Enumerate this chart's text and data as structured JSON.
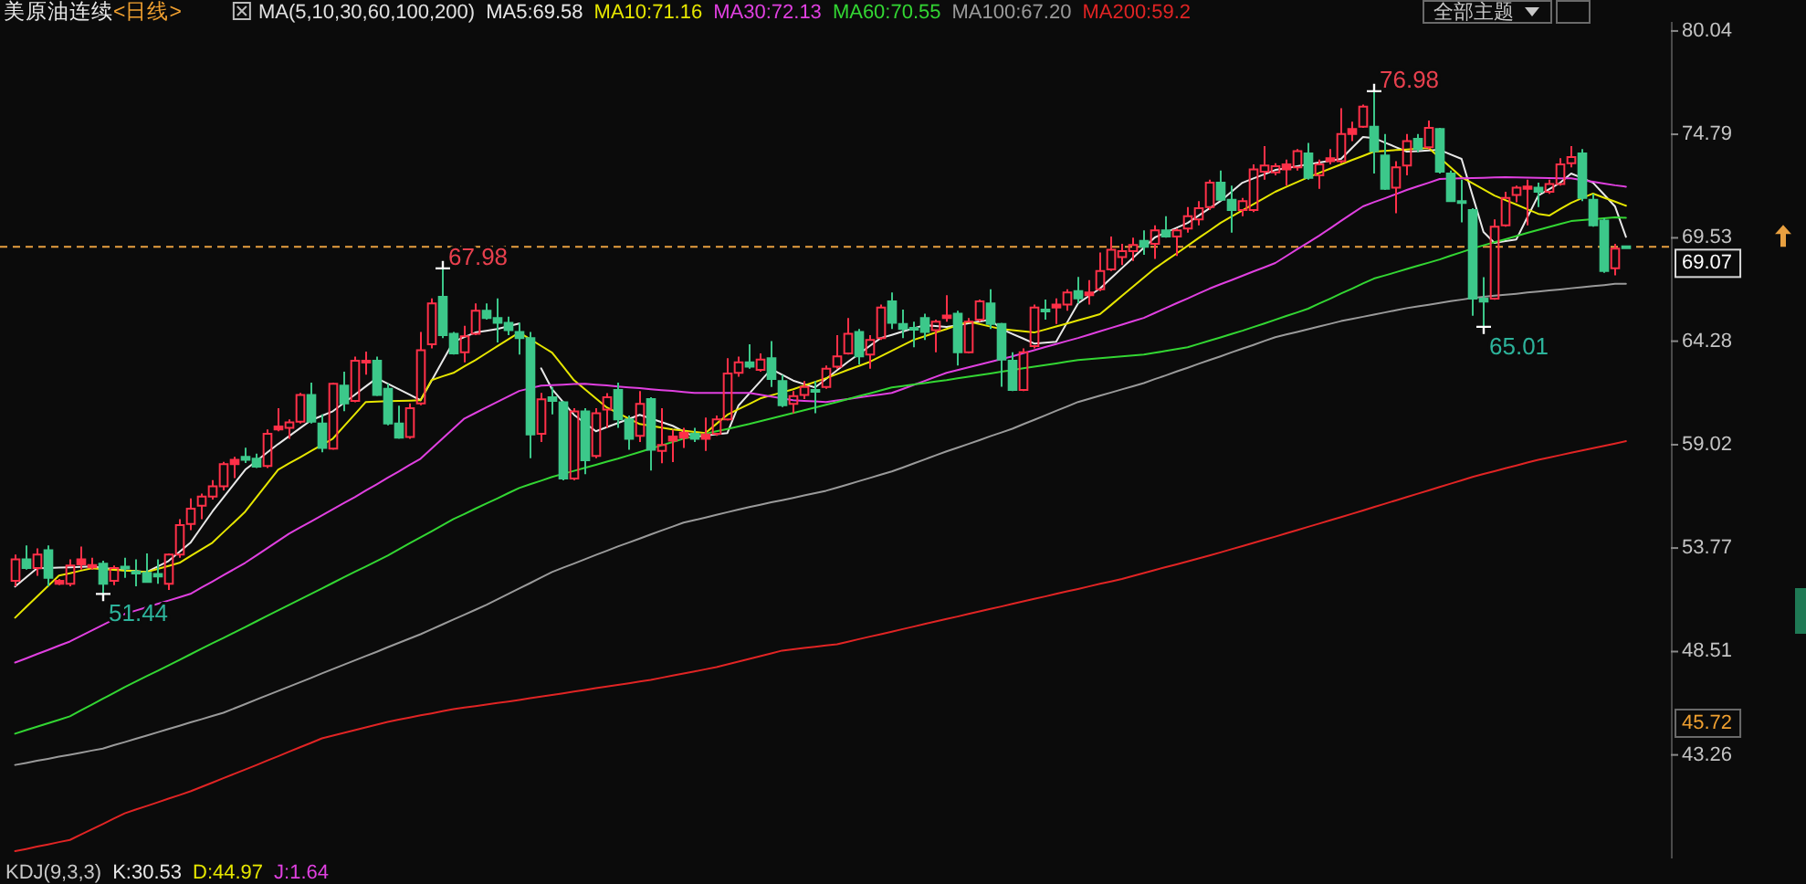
{
  "chart_data": {
    "type": "candlestick",
    "title": "美原油连续",
    "subtitle": "<日线>",
    "tick_labels": "y",
    "ylim": [
      38,
      80.5
    ],
    "yticks": [
      80.04,
      74.79,
      69.53,
      64.28,
      59.02,
      53.77,
      48.51,
      43.26
    ],
    "categories": [
      null,
      null,
      null,
      null,
      null,
      null,
      null,
      null,
      null,
      null,
      null,
      null,
      null,
      null,
      null,
      null,
      null,
      null,
      null,
      null,
      null,
      null,
      null,
      null,
      null,
      null,
      null,
      null,
      null,
      null,
      null,
      null,
      null,
      null,
      null,
      null,
      null,
      null,
      null,
      null,
      null,
      null,
      null,
      null,
      null,
      null,
      null,
      null,
      null,
      null,
      null,
      null,
      null,
      null,
      null,
      null,
      null,
      null,
      null,
      null,
      null,
      null,
      null,
      null,
      null,
      null,
      null,
      null,
      null,
      null,
      null,
      null,
      null,
      null,
      null,
      null,
      null,
      null,
      null,
      null,
      null,
      null,
      null,
      null,
      null,
      null,
      null,
      null,
      null,
      null,
      null,
      null,
      null,
      null,
      null,
      null,
      null,
      null,
      null,
      null,
      null,
      null,
      null,
      null,
      null,
      null,
      null,
      null,
      null,
      null,
      null,
      null,
      null,
      null,
      null,
      null,
      null,
      null,
      null,
      null,
      null,
      null,
      null,
      null,
      null,
      null,
      null,
      null,
      null,
      null,
      null,
      null,
      null,
      null,
      null,
      null,
      null,
      null,
      null,
      null,
      null,
      null,
      null,
      null,
      null,
      null,
      null,
      null
    ],
    "ohlc": [
      [
        52.11,
        53.44,
        51.83,
        53.19
      ],
      [
        53.19,
        53.9,
        52.67,
        52.76
      ],
      [
        52.76,
        53.75,
        52.36,
        53.44
      ],
      [
        53.66,
        53.9,
        51.83,
        52.26
      ],
      [
        51.95,
        52.2,
        51.89,
        52.11
      ],
      [
        51.95,
        53.19,
        51.83,
        52.88
      ],
      [
        52.94,
        53.84,
        52.67,
        53.19
      ],
      [
        52.79,
        53.28,
        52.67,
        52.91
      ],
      [
        52.98,
        53.13,
        51.44,
        51.95
      ],
      [
        52.11,
        52.88,
        51.89,
        52.76
      ],
      [
        52.82,
        53.28,
        52.26,
        52.76
      ],
      [
        52.57,
        53.19,
        51.83,
        52.48
      ],
      [
        52.51,
        53.5,
        52.02,
        52.05
      ],
      [
        52.45,
        53.19,
        51.95,
        52.33
      ],
      [
        51.95,
        53.5,
        51.64,
        53.44
      ],
      [
        53.44,
        55.24,
        53.28,
        54.93
      ],
      [
        54.99,
        56.29,
        54.68,
        55.77
      ],
      [
        55.92,
        56.54,
        55.24,
        56.39
      ],
      [
        56.39,
        57.22,
        56.23,
        56.91
      ],
      [
        56.91,
        58.15,
        56.7,
        58.03
      ],
      [
        58.03,
        58.4,
        57.32,
        58.25
      ],
      [
        58.4,
        58.87,
        58.09,
        58.25
      ],
      [
        58.31,
        58.56,
        57.84,
        57.91
      ],
      [
        57.94,
        59.8,
        57.84,
        59.58
      ],
      [
        59.8,
        60.87,
        59.7,
        59.95
      ],
      [
        59.88,
        60.31,
        59.32,
        60.16
      ],
      [
        60.19,
        61.65,
        60.1,
        61.55
      ],
      [
        61.55,
        62.17,
        60.1,
        60.19
      ],
      [
        60.1,
        60.56,
        58.64,
        58.86
      ],
      [
        58.82,
        62.17,
        58.76,
        62.11
      ],
      [
        62.02,
        62.73,
        60.72,
        61.12
      ],
      [
        61.24,
        63.5,
        61.18,
        63.29
      ],
      [
        63.2,
        63.75,
        62.58,
        63.29
      ],
      [
        63.29,
        63.5,
        61.49,
        61.55
      ],
      [
        61.86,
        62.11,
        60.0,
        60.1
      ],
      [
        60.1,
        61.0,
        59.32,
        59.38
      ],
      [
        59.41,
        61.12,
        59.32,
        60.87
      ],
      [
        61.12,
        64.75,
        61.03,
        63.82
      ],
      [
        64.12,
        66.45,
        63.91,
        66.2
      ],
      [
        66.54,
        67.98,
        64.43,
        64.59
      ],
      [
        64.65,
        64.75,
        63.6,
        63.66
      ],
      [
        63.72,
        65.06,
        63.2,
        64.53
      ],
      [
        64.65,
        66.2,
        64.59,
        65.83
      ],
      [
        65.83,
        66.2,
        65.37,
        65.46
      ],
      [
        65.46,
        66.45,
        64.22,
        65.21
      ],
      [
        65.21,
        65.52,
        64.59,
        64.84
      ],
      [
        64.75,
        65.21,
        63.6,
        64.43
      ],
      [
        64.43,
        64.75,
        58.33,
        59.54
      ],
      [
        59.57,
        61.65,
        59.16,
        61.33
      ],
      [
        61.43,
        61.95,
        60.56,
        61.24
      ],
      [
        61.18,
        61.24,
        57.21,
        57.3
      ],
      [
        57.3,
        60.87,
        57.21,
        60.71
      ],
      [
        60.71,
        60.87,
        57.52,
        58.23
      ],
      [
        58.45,
        60.87,
        58.33,
        60.62
      ],
      [
        60.8,
        61.64,
        59.88,
        61.43
      ],
      [
        61.8,
        62.17,
        59.88,
        60.31
      ],
      [
        60.31,
        60.5,
        58.76,
        59.32
      ],
      [
        59.47,
        61.74,
        59.16,
        61.09
      ],
      [
        61.34,
        61.43,
        57.71,
        58.76
      ],
      [
        58.7,
        60.87,
        58.08,
        59.01
      ],
      [
        59.23,
        59.78,
        58.14,
        59.44
      ],
      [
        59.38,
        59.88,
        58.85,
        59.63
      ],
      [
        59.57,
        59.88,
        59.16,
        59.32
      ],
      [
        59.32,
        60.4,
        58.7,
        59.54
      ],
      [
        59.57,
        60.5,
        59.47,
        60.31
      ],
      [
        60.31,
        63.41,
        60.25,
        62.64
      ],
      [
        62.67,
        63.5,
        62.48,
        63.2
      ],
      [
        63.2,
        64.12,
        62.88,
        62.98
      ],
      [
        62.82,
        63.66,
        62.73,
        63.35
      ],
      [
        63.41,
        64.28,
        61.95,
        62.36
      ],
      [
        62.26,
        62.57,
        60.93,
        61.02
      ],
      [
        61.09,
        61.74,
        60.62,
        61.49
      ],
      [
        61.55,
        62.26,
        61.34,
        61.95
      ],
      [
        61.8,
        62.26,
        60.62,
        61.74
      ],
      [
        61.95,
        63.04,
        61.86,
        62.88
      ],
      [
        62.98,
        64.59,
        62.88,
        63.51
      ],
      [
        63.66,
        65.46,
        63.6,
        64.65
      ],
      [
        64.75,
        64.9,
        63.1,
        63.51
      ],
      [
        63.6,
        64.59,
        62.88,
        64.34
      ],
      [
        64.44,
        66.14,
        64.34,
        65.99
      ],
      [
        66.3,
        66.76,
        64.9,
        65.21
      ],
      [
        65.15,
        65.89,
        64.44,
        64.9
      ],
      [
        64.96,
        65.27,
        63.97,
        64.9
      ],
      [
        65.46,
        65.68,
        64.34,
        64.75
      ],
      [
        64.84,
        65.37,
        63.72,
        65.27
      ],
      [
        65.46,
        66.61,
        65.27,
        65.58
      ],
      [
        65.68,
        65.83,
        63.04,
        63.72
      ],
      [
        63.72,
        65.46,
        63.66,
        65.27
      ],
      [
        65.37,
        66.39,
        65.27,
        66.3
      ],
      [
        66.2,
        66.92,
        64.9,
        65.15
      ],
      [
        65.15,
        65.21,
        61.96,
        63.35
      ],
      [
        63.29,
        63.72,
        61.74,
        61.8
      ],
      [
        61.8,
        63.91,
        61.74,
        63.72
      ],
      [
        64.03,
        66.14,
        63.91,
        65.99
      ],
      [
        65.89,
        66.39,
        65.37,
        65.83
      ],
      [
        65.99,
        66.45,
        65.15,
        66.14
      ],
      [
        66.14,
        66.92,
        65.83,
        66.76
      ],
      [
        66.82,
        67.54,
        66.2,
        66.45
      ],
      [
        66.61,
        67.38,
        66.14,
        66.76
      ],
      [
        66.92,
        68.78,
        66.82,
        67.85
      ],
      [
        67.93,
        69.6,
        67.84,
        68.92
      ],
      [
        68.55,
        69.23,
        68.15,
        68.86
      ],
      [
        68.86,
        69.54,
        68.36,
        69.17
      ],
      [
        69.38,
        69.91,
        68.67,
        69.07
      ],
      [
        69.23,
        70.16,
        68.46,
        69.91
      ],
      [
        69.91,
        70.63,
        69.54,
        69.6
      ],
      [
        69.6,
        70.0,
        68.61,
        69.91
      ],
      [
        70.0,
        71.09,
        69.79,
        70.63
      ],
      [
        70.47,
        71.4,
        70.16,
        71.03
      ],
      [
        71.09,
        72.49,
        70.94,
        72.33
      ],
      [
        72.33,
        72.95,
        71.4,
        71.46
      ],
      [
        71.46,
        72.18,
        69.79,
        70.94
      ],
      [
        70.94,
        71.56,
        70.63,
        71.4
      ],
      [
        70.94,
        73.26,
        70.84,
        73.01
      ],
      [
        72.89,
        74.19,
        72.49,
        73.2
      ],
      [
        72.86,
        73.32,
        72.7,
        73.17
      ],
      [
        73.01,
        73.51,
        72.18,
        73.26
      ],
      [
        73.11,
        74.04,
        72.95,
        73.94
      ],
      [
        73.82,
        74.35,
        72.49,
        72.58
      ],
      [
        72.7,
        73.51,
        72.02,
        73.26
      ],
      [
        73.42,
        74.04,
        73.26,
        73.57
      ],
      [
        73.42,
        76.11,
        73.32,
        74.81
      ],
      [
        74.81,
        75.43,
        74.44,
        75.06
      ],
      [
        75.18,
        76.3,
        75.12,
        76.2
      ],
      [
        75.18,
        76.98,
        72.8,
        73.94
      ],
      [
        73.72,
        74.81,
        71.96,
        72.02
      ],
      [
        72.08,
        73.42,
        70.78,
        73.11
      ],
      [
        73.2,
        74.81,
        72.7,
        74.44
      ],
      [
        74.56,
        74.81,
        73.88,
        74.04
      ],
      [
        74.13,
        75.49,
        74.04,
        75.12
      ],
      [
        75.06,
        75.12,
        72.8,
        72.89
      ],
      [
        72.8,
        72.95,
        71.4,
        71.4
      ],
      [
        71.4,
        72.49,
        70.31,
        71.34
      ],
      [
        70.94,
        71.03,
        65.57,
        66.44
      ],
      [
        66.44,
        67.53,
        65.01,
        66.29
      ],
      [
        66.44,
        70.47,
        66.38,
        70.1
      ],
      [
        70.16,
        71.87,
        70.1,
        71.56
      ],
      [
        71.71,
        72.18,
        71.34,
        72.08
      ],
      [
        72.02,
        72.49,
        70.16,
        72.14
      ],
      [
        72.08,
        72.33,
        71.09,
        71.87
      ],
      [
        71.87,
        72.49,
        71.77,
        72.27
      ],
      [
        72.27,
        73.57,
        72.18,
        73.26
      ],
      [
        73.32,
        74.19,
        73.11,
        73.63
      ],
      [
        73.82,
        74.04,
        71.4,
        71.56
      ],
      [
        71.46,
        71.77,
        70.1,
        70.16
      ],
      [
        70.41,
        70.53,
        67.75,
        67.84
      ],
      [
        67.99,
        69.23,
        67.62,
        68.98
      ],
      [
        69.1,
        69.1,
        69.07,
        69.07
      ]
    ],
    "value_labels": [
      null,
      null,
      null,
      null,
      null,
      null,
      null,
      null,
      "51.44",
      null,
      null,
      null,
      null,
      null,
      null,
      null,
      null,
      null,
      null,
      null,
      null,
      null,
      null,
      null,
      null,
      null,
      null,
      null,
      null,
      null,
      null,
      null,
      null,
      null,
      null,
      null,
      null,
      null,
      null,
      "67.98",
      null,
      null,
      null,
      null,
      null,
      null,
      null,
      null,
      null,
      null,
      null,
      null,
      null,
      null,
      null,
      null,
      null,
      null,
      null,
      null,
      null,
      null,
      null,
      null,
      null,
      null,
      null,
      null,
      null,
      null,
      null,
      null,
      null,
      null,
      null,
      null,
      null,
      null,
      null,
      null,
      null,
      null,
      null,
      null,
      null,
      null,
      null,
      null,
      null,
      null,
      null,
      null,
      null,
      null,
      null,
      null,
      null,
      null,
      null,
      null,
      null,
      null,
      null,
      null,
      null,
      null,
      null,
      null,
      null,
      null,
      null,
      null,
      null,
      null,
      null,
      null,
      null,
      null,
      null,
      null,
      null,
      null,
      null,
      null,
      "76.98",
      null,
      null,
      null,
      null,
      null,
      null,
      null,
      null,
      null,
      "65.01",
      null,
      null,
      null,
      null,
      null,
      null,
      null,
      null,
      null,
      null,
      null,
      null,
      null
    ],
    "colors": [
      "#ff3048",
      "#3cc88a",
      "#ff3048",
      "#3cc88a",
      "#ff3048",
      "#ff3048",
      "#ff3048",
      "#ff3048",
      "#3cc88a",
      "#ff3048",
      "#3cc88a",
      "#3cc88a",
      "#3cc88a",
      "#3cc88a",
      "#ff3048",
      "#ff3048",
      "#ff3048",
      "#ff3048",
      "#ff3048",
      "#ff3048",
      "#ff3048",
      "#3cc88a",
      "#3cc88a",
      "#ff3048",
      "#ff3048",
      "#ff3048",
      "#ff3048",
      "#3cc88a",
      "#3cc88a",
      "#ff3048",
      "#3cc88a",
      "#ff3048",
      "#ff3048",
      "#3cc88a",
      "#3cc88a",
      "#3cc88a",
      "#ff3048",
      "#ff3048",
      "#ff3048",
      "#3cc88a",
      "#3cc88a",
      "#ff3048",
      "#ff3048",
      "#3cc88a",
      "#3cc88a",
      "#3cc88a",
      "#3cc88a",
      "#3cc88a",
      "#ff3048",
      "#3cc88a",
      "#3cc88a",
      "#ff3048",
      "#3cc88a",
      "#ff3048",
      "#ff3048",
      "#3cc88a",
      "#3cc88a",
      "#ff3048",
      "#3cc88a",
      "#ff3048",
      "#ff3048",
      "#ff3048",
      "#3cc88a",
      "#ff3048",
      "#ff3048",
      "#ff3048",
      "#ff3048",
      "#3cc88a",
      "#ff3048",
      "#3cc88a",
      "#3cc88a",
      "#ff3048",
      "#ff3048",
      "#3cc88a",
      "#ff3048",
      "#ff3048",
      "#ff3048",
      "#3cc88a",
      "#ff3048",
      "#ff3048",
      "#3cc88a",
      "#3cc88a",
      "#3cc88a",
      "#3cc88a",
      "#ff3048",
      "#ff3048",
      "#3cc88a",
      "#ff3048",
      "#ff3048",
      "#3cc88a",
      "#3cc88a",
      "#3cc88a",
      "#ff3048",
      "#ff3048",
      "#3cc88a",
      "#ff3048",
      "#ff3048",
      "#3cc88a",
      "#ff3048",
      "#ff3048",
      "#ff3048",
      "#ff3048",
      "#ff3048",
      "#3cc88a",
      "#ff3048",
      "#3cc88a",
      "#ff3048",
      "#ff3048",
      "#ff3048",
      "#ff3048",
      "#3cc88a",
      "#3cc88a",
      "#ff3048",
      "#ff3048",
      "#ff3048",
      "#ff3048",
      "#ff3048",
      "#ff3048",
      "#3cc88a",
      "#ff3048",
      "#ff3048",
      "#ff3048",
      "#ff3048",
      "#ff3048",
      "#3cc88a",
      "#3cc88a",
      "#ff3048",
      "#ff3048",
      "#3cc88a",
      "#ff3048",
      "#3cc88a",
      "#3cc88a",
      "#3cc88a",
      "#3cc88a",
      "#3cc88a",
      "#ff3048",
      "#ff3048",
      "#ff3048",
      "#ff3048",
      "#3cc88a",
      "#ff3048",
      "#ff3048",
      "#ff3048",
      "#3cc88a",
      "#3cc88a",
      "#3cc88a",
      "#ff3048",
      "#3cc88a"
    ],
    "series": [
      {
        "type": "line",
        "name": "MA5:69.58",
        "color": "#e8e8e8",
        "values": [
          51.81,
          52.28,
          52.74,
          52.76,
          52.78,
          52.79,
          52.81,
          52.83,
          52.77,
          52.7,
          52.64,
          52.6,
          52.55,
          52.83,
          53.11,
          53.58,
          54.04,
          54.83,
          55.62,
          56.33,
          57.04,
          57.75,
          58.18,
          58.62,
          59.05,
          59.45,
          59.86,
          60.26,
          60.49,
          60.72,
          61.14,
          61.56,
          61.98,
          62.4,
          62.12,
          61.84,
          61.56,
          61.28,
          62.27,
          63.26,
          64.25,
          64.49,
          64.72,
          64.81,
          64.9,
          65.04,
          65.18,
          null,
          62.9,
          61.84,
          61.19,
          60.54,
          60.12,
          59.7,
          59.91,
          60.12,
          60.33,
          60.54,
          60.35,
          60.17,
          59.98,
          59.7,
          59.42,
          59.48,
          59.55,
          59.61,
          61.0,
          61.62,
          62.24,
          62.86,
          62.57,
          62.28,
          62.1,
          61.93,
          62.36,
          62.8,
          63.23,
          63.63,
          64.04,
          64.44,
          64.6,
          64.77,
          64.93,
          65.09,
          65.05,
          65.0,
          65.09,
          65.19,
          65.28,
          65.37,
          64.9,
          64.65,
          64.41,
          64.16,
          64.2,
          64.25,
          65.23,
          66.2,
          66.58,
          66.95,
          67.47,
          67.99,
          68.51,
          69.03,
          69.55,
          69.8,
          70.04,
          70.29,
          70.66,
          71.03,
          71.4,
          71.87,
          72.33,
          72.55,
          72.76,
          72.98,
          73.07,
          73.17,
          73.26,
          73.35,
          73.45,
          73.54,
          74.1,
          74.65,
          74.6,
          74.37,
          74.14,
          73.91,
          73.94,
          73.97,
          74.0,
          73.77,
          73.54,
          71.68,
          69.83,
          69.27,
          69.36,
          69.45,
          70.57,
          71.68,
          72.0,
          72.33,
          72.8,
          72.57,
          72.33,
          71.73,
          71.13,
          69.58
        ]
      },
      {
        "type": "line",
        "name": "MA10:71.16",
        "color": "#e6e600",
        "values": [
          50.23,
          50.77,
          51.3,
          51.84,
          52.37,
          52.49,
          52.62,
          52.74,
          52.7,
          52.66,
          52.63,
          52.59,
          52.55,
          52.71,
          52.86,
          53.02,
          53.36,
          53.7,
          54.04,
          54.57,
          55.09,
          55.62,
          56.33,
          57.04,
          57.75,
          58.07,
          58.38,
          58.7,
          59.01,
          59.33,
          59.95,
          60.57,
          61.19,
          61.21,
          61.23,
          61.24,
          61.26,
          61.28,
          62.3,
          62.49,
          62.67,
          63.0,
          63.32,
          63.67,
          64.02,
          64.37,
          64.72,
          64.38,
          64.04,
          63.7,
          63.0,
          62.3,
          61.84,
          61.37,
          60.91,
          60.63,
          60.35,
          60.07,
          59.98,
          59.89,
          59.8,
          59.74,
          59.67,
          59.61,
          60.08,
          60.54,
          60.82,
          61.09,
          61.37,
          61.53,
          61.68,
          61.84,
          62.03,
          62.21,
          62.4,
          62.61,
          62.82,
          63.02,
          63.23,
          63.51,
          63.79,
          64.07,
          64.35,
          64.53,
          64.72,
          64.9,
          65.09,
          65.27,
          65.15,
          65.02,
          64.9,
          64.84,
          64.78,
          64.72,
          64.87,
          65.03,
          65.18,
          65.34,
          65.49,
          65.65,
          66.11,
          66.58,
          67.04,
          67.51,
          67.97,
          68.36,
          68.74,
          69.13,
          69.52,
          69.9,
          70.29,
          70.61,
          70.92,
          71.24,
          71.55,
          71.87,
          72.12,
          72.36,
          72.61,
          72.83,
          73.04,
          73.26,
          73.48,
          73.69,
          73.91,
          73.95,
          73.99,
          74.02,
          74.06,
          74.1,
          73.6,
          73.11,
          72.61,
          72.3,
          71.99,
          71.68,
          71.45,
          71.22,
          70.98,
          70.75,
          70.66,
          70.99,
          71.31,
          71.55,
          71.78,
          71.57,
          71.37,
          71.16
        ]
      },
      {
        "type": "line",
        "name": "MA30:72.13",
        "color": "#e040e0",
        "values": [
          47.95,
          48.16,
          48.38,
          48.59,
          48.81,
          49.02,
          49.3,
          49.58,
          49.86,
          50.14,
          50.42,
          50.59,
          50.76,
          50.93,
          51.1,
          51.27,
          51.44,
          51.76,
          52.07,
          52.39,
          52.7,
          53.02,
          53.39,
          53.76,
          54.13,
          54.5,
          54.81,
          55.12,
          55.43,
          55.74,
          56.05,
          56.36,
          56.69,
          57.01,
          57.34,
          57.66,
          57.99,
          58.31,
          58.82,
          59.33,
          59.84,
          60.35,
          60.63,
          60.91,
          61.19,
          61.47,
          61.75,
          61.89,
          62.02,
          62.05,
          62.07,
          62.1,
          62.12,
          62.07,
          62.03,
          61.98,
          61.93,
          61.89,
          61.84,
          61.79,
          61.75,
          61.7,
          61.65,
          61.65,
          61.65,
          61.65,
          61.65,
          61.65,
          61.56,
          61.47,
          61.37,
          61.28,
          61.25,
          61.22,
          61.19,
          61.27,
          61.34,
          61.42,
          61.5,
          61.57,
          61.65,
          61.85,
          62.06,
          62.26,
          62.47,
          62.67,
          62.81,
          62.95,
          63.09,
          63.23,
          63.37,
          63.51,
          63.67,
          63.82,
          63.98,
          64.13,
          64.29,
          64.44,
          64.61,
          64.78,
          64.95,
          65.12,
          65.29,
          65.46,
          65.71,
          65.96,
          66.21,
          66.45,
          66.7,
          66.95,
          67.17,
          67.38,
          67.6,
          67.82,
          68.03,
          68.25,
          68.6,
          68.95,
          69.29,
          69.64,
          70.01,
          70.39,
          70.76,
          71.13,
          71.34,
          71.54,
          71.75,
          71.96,
          72.15,
          72.33,
          72.52,
          72.54,
          72.55,
          72.57,
          72.58,
          72.6,
          72.61,
          72.6,
          72.59,
          72.58,
          72.57,
          72.56,
          72.55,
          72.46,
          72.38,
          72.29,
          72.2,
          72.13
        ]
      },
      {
        "type": "line",
        "name": "MA60:70.55",
        "color": "#33d633",
        "values": [
          44.34,
          44.52,
          44.69,
          44.87,
          45.04,
          45.22,
          45.52,
          45.81,
          46.11,
          46.4,
          46.7,
          46.98,
          47.26,
          47.53,
          47.81,
          48.09,
          48.37,
          48.65,
          48.93,
          49.2,
          49.48,
          49.76,
          50.04,
          50.32,
          50.6,
          50.88,
          51.16,
          51.44,
          51.72,
          52.0,
          52.28,
          52.56,
          52.83,
          53.11,
          53.39,
          53.7,
          54.01,
          54.32,
          54.62,
          54.93,
          55.24,
          55.5,
          55.77,
          56.03,
          56.29,
          56.56,
          56.82,
          57.01,
          57.19,
          57.38,
          57.54,
          57.69,
          57.85,
          58.0,
          58.16,
          58.31,
          58.48,
          58.65,
          58.82,
          58.99,
          59.16,
          59.33,
          59.45,
          59.58,
          59.7,
          59.82,
          59.95,
          60.07,
          60.21,
          60.35,
          60.49,
          60.63,
          60.77,
          60.91,
          61.05,
          61.19,
          61.34,
          61.49,
          61.63,
          61.78,
          61.93,
          62.0,
          62.08,
          62.15,
          62.23,
          62.3,
          62.39,
          62.47,
          62.56,
          62.64,
          62.73,
          62.81,
          62.9,
          62.98,
          63.07,
          63.15,
          63.24,
          63.32,
          63.37,
          63.41,
          63.46,
          63.51,
          63.55,
          63.6,
          63.69,
          63.78,
          63.88,
          63.97,
          64.14,
          64.31,
          64.47,
          64.64,
          64.81,
          65.0,
          65.18,
          65.37,
          65.56,
          65.74,
          65.93,
          66.19,
          66.44,
          66.7,
          66.95,
          67.21,
          67.46,
          67.62,
          67.78,
          67.95,
          68.11,
          68.27,
          68.43,
          68.62,
          68.8,
          68.99,
          69.15,
          69.31,
          69.46,
          69.62,
          69.78,
          69.93,
          70.08,
          70.23,
          70.38,
          70.43,
          70.48,
          70.52,
          70.57,
          70.55
        ]
      },
      {
        "type": "line",
        "name": "MA100:67.20",
        "color": "#9a9a9a",
        "values": [
          42.75,
          42.85,
          42.96,
          43.06,
          43.17,
          43.27,
          43.37,
          43.48,
          43.58,
          43.75,
          43.91,
          44.08,
          44.24,
          44.41,
          44.58,
          44.74,
          44.91,
          45.07,
          45.24,
          45.4,
          45.62,
          45.84,
          46.07,
          46.29,
          46.51,
          46.73,
          46.95,
          47.17,
          47.4,
          47.62,
          47.84,
          48.06,
          48.28,
          48.5,
          48.73,
          48.95,
          49.17,
          49.39,
          49.64,
          49.89,
          50.14,
          50.38,
          50.63,
          50.88,
          51.16,
          51.44,
          51.72,
          51.99,
          52.27,
          52.55,
          52.77,
          52.98,
          53.2,
          53.42,
          53.63,
          53.85,
          54.05,
          54.25,
          54.46,
          54.66,
          54.86,
          55.06,
          55.19,
          55.32,
          55.46,
          55.59,
          55.72,
          55.85,
          55.97,
          56.09,
          56.2,
          56.32,
          56.44,
          56.56,
          56.68,
          56.84,
          57.0,
          57.17,
          57.33,
          57.5,
          57.66,
          57.86,
          58.07,
          58.27,
          58.48,
          58.68,
          58.87,
          59.06,
          59.25,
          59.45,
          59.64,
          59.83,
          60.06,
          60.28,
          60.51,
          60.74,
          60.96,
          61.19,
          61.35,
          61.51,
          61.67,
          61.83,
          61.99,
          62.15,
          62.35,
          62.54,
          62.74,
          62.93,
          63.13,
          63.32,
          63.51,
          63.71,
          63.9,
          64.09,
          64.29,
          64.48,
          64.62,
          64.75,
          64.89,
          65.03,
          65.16,
          65.3,
          65.41,
          65.52,
          65.63,
          65.74,
          65.85,
          65.96,
          66.05,
          66.13,
          66.22,
          66.31,
          66.39,
          66.48,
          66.53,
          66.59,
          66.64,
          66.69,
          66.75,
          66.8,
          66.86,
          66.91,
          66.97,
          67.02,
          67.08,
          67.13,
          67.19,
          67.2
        ]
      },
      {
        "type": "line",
        "name": "MA200:59.2",
        "color": "#e02424",
        "values": [
          38.37,
          38.48,
          38.6,
          38.71,
          38.83,
          38.94,
          39.21,
          39.48,
          39.75,
          40.02,
          40.29,
          40.48,
          40.66,
          40.85,
          41.04,
          41.22,
          41.41,
          41.63,
          41.85,
          42.08,
          42.3,
          42.52,
          42.74,
          42.97,
          43.19,
          43.42,
          43.65,
          43.87,
          44.1,
          44.24,
          44.38,
          44.52,
          44.66,
          44.8,
          44.94,
          45.05,
          45.16,
          45.27,
          45.37,
          45.48,
          45.59,
          45.67,
          45.74,
          45.82,
          45.9,
          45.97,
          46.05,
          46.14,
          46.22,
          46.31,
          46.39,
          46.48,
          46.56,
          46.65,
          46.73,
          46.82,
          46.9,
          46.99,
          47.07,
          47.18,
          47.29,
          47.4,
          47.5,
          47.61,
          47.72,
          47.86,
          48.0,
          48.14,
          48.28,
          48.42,
          48.56,
          48.62,
          48.69,
          48.75,
          48.82,
          48.88,
          49.01,
          49.14,
          49.27,
          49.39,
          49.52,
          49.65,
          49.78,
          49.91,
          50.04,
          50.17,
          50.29,
          50.42,
          50.55,
          50.68,
          50.8,
          50.93,
          51.06,
          51.19,
          51.31,
          51.44,
          51.57,
          51.69,
          51.82,
          51.95,
          52.07,
          52.2,
          52.35,
          52.5,
          52.65,
          52.8,
          52.94,
          53.09,
          53.24,
          53.39,
          53.55,
          53.71,
          53.87,
          54.03,
          54.19,
          54.35,
          54.52,
          54.68,
          54.85,
          55.01,
          55.18,
          55.34,
          55.51,
          55.68,
          55.85,
          56.02,
          56.19,
          56.36,
          56.53,
          56.7,
          56.87,
          57.04,
          57.21,
          57.38,
          57.53,
          57.67,
          57.82,
          57.96,
          58.11,
          58.25,
          58.37,
          58.49,
          58.61,
          58.73,
          58.84,
          58.96,
          59.08,
          59.2
        ]
      }
    ],
    "ref_lines": [
      {
        "axis": "y",
        "value": 69.07,
        "label": "69.07",
        "color": "#e8a040",
        "line_style": "dashed"
      }
    ],
    "annotations": [
      "MA(5,10,30,60,100,200)",
      "全部主题",
      "45.72",
      "KDJ(9,3,3)",
      "K:30.53",
      "D:44.97",
      "J:1.64"
    ]
  }
}
